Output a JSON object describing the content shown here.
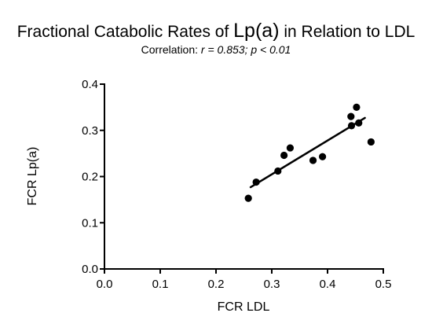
{
  "title": {
    "prefix": "Fractional Catabolic Rates of ",
    "emph": "Lp(a)",
    "suffix": " in Relation to LDL"
  },
  "subtitle": {
    "label": "Correlation: ",
    "stats": "r = 0.853; p < 0.01"
  },
  "chart_data": {
    "type": "scatter",
    "title": "Fractional Catabolic Rates of Lp(a) in Relation to LDL",
    "subtitle": "Correlation: r = 0.853; p < 0.01",
    "xlabel": "FCR LDL",
    "ylabel": "FCR Lp(a)",
    "xlim": [
      0.0,
      0.5
    ],
    "ylim": [
      0.0,
      0.4
    ],
    "x_ticks": [
      "0.0",
      "0.1",
      "0.2",
      "0.3",
      "0.4",
      "0.5"
    ],
    "y_ticks": [
      "0.0",
      "0.1",
      "0.2",
      "0.3",
      "0.4"
    ],
    "grid": false,
    "legend": "none",
    "points": [
      {
        "x": 0.258,
        "y": 0.153
      },
      {
        "x": 0.272,
        "y": 0.188
      },
      {
        "x": 0.311,
        "y": 0.212
      },
      {
        "x": 0.322,
        "y": 0.246
      },
      {
        "x": 0.333,
        "y": 0.262
      },
      {
        "x": 0.374,
        "y": 0.235
      },
      {
        "x": 0.391,
        "y": 0.243
      },
      {
        "x": 0.442,
        "y": 0.33
      },
      {
        "x": 0.443,
        "y": 0.31
      },
      {
        "x": 0.452,
        "y": 0.35
      },
      {
        "x": 0.456,
        "y": 0.316
      },
      {
        "x": 0.478,
        "y": 0.275
      }
    ],
    "fit_line": {
      "x": [
        0.262,
        0.467
      ],
      "y": [
        0.177,
        0.327
      ]
    },
    "point_color": "#000000"
  }
}
